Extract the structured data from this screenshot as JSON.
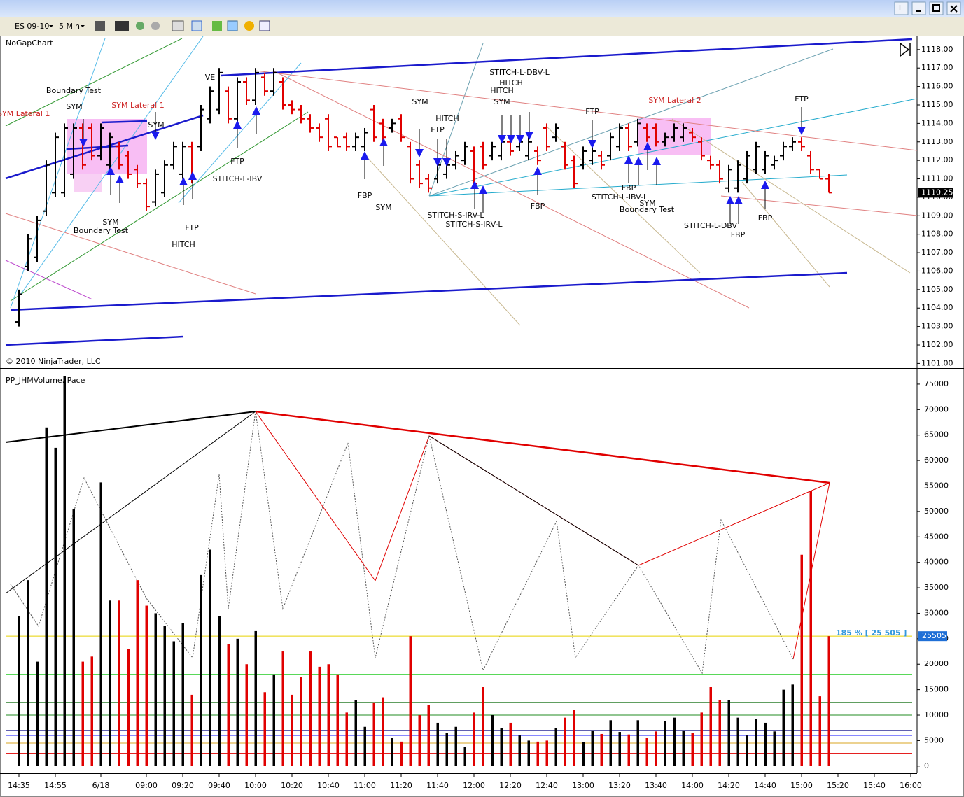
{
  "window": {
    "button": "L"
  },
  "toolbar": {
    "instrument": "ES 09-10",
    "interval": "5 Min"
  },
  "chart_data": [
    {
      "type": "ohlc",
      "title": "NoGapChart",
      "copyright": "© 2010 NinjaTrader, LLC",
      "open": [
        1103.25,
        1106.25,
        1106.75,
        1109.25,
        1110.25,
        1110.25,
        1111.25,
        1113.75,
        1113.75,
        1112.25,
        1111.75,
        1112.75,
        1112.25,
        1111.5,
        1110.75,
        1109.75,
        1110.25,
        1111.75,
        1111.25,
        1112.75,
        1112.75,
        1114.25,
        1114.75,
        1115.75,
        1114.25,
        1116.25,
        1115.25,
        1116.5,
        1115.75,
        1116.25,
        1115,
        1114.75,
        1114.25,
        1113.75,
        1114.25,
        1113.25,
        1113.25,
        1112.75,
        1112.75,
        1114.75,
        1114,
        1113.75,
        1114.25,
        1112.75,
        1111.75,
        1111,
        1111,
        1111.25,
        1111.75,
        1112,
        1112.5,
        1112.75,
        1112.25,
        1112.25,
        1113,
        1112.75,
        1112.25,
        1112.5,
        1113.75,
        1113.25,
        1112.75,
        1112,
        1111.75,
        1112,
        1112.25,
        1112.25,
        1112.75,
        1113.75,
        1113,
        1113.75,
        1113.75,
        1113,
        1113.25,
        1113.25,
        1113.5,
        1113,
        1112,
        1111.75,
        1110.5,
        1110.5,
        1111,
        1111.5,
        1111.5,
        1111.75,
        1112.25,
        1112.75,
        1113,
        1112.25,
        1111.5,
        1111
      ],
      "high": [
        1105,
        1108,
        1109,
        1112,
        1113.5,
        1114,
        1114,
        1114,
        1114,
        1114,
        1113.5,
        1113,
        1112.5,
        1111.75,
        1111,
        1111.5,
        1112,
        1113,
        1113,
        1113,
        1115,
        1116,
        1117,
        1116,
        1116.5,
        1116.5,
        1117,
        1116.75,
        1117,
        1116.5,
        1115.25,
        1115,
        1114.5,
        1114,
        1114.5,
        1113.25,
        1113.5,
        1113.5,
        1113.75,
        1115,
        1114.25,
        1114.25,
        1114.5,
        1113,
        1112,
        1111.25,
        1112,
        1112,
        1112.5,
        1113,
        1112.75,
        1113,
        1113,
        1113.25,
        1113.25,
        1113.25,
        1113.25,
        1112.75,
        1114,
        1114,
        1113,
        1112.25,
        1112.75,
        1112.75,
        1112.5,
        1113.5,
        1114,
        1114,
        1114.25,
        1114,
        1114,
        1113.5,
        1114,
        1114,
        1113.75,
        1113.25,
        1112.25,
        1112,
        1111.75,
        1112,
        1112.5,
        1113,
        1112.5,
        1112.25,
        1113,
        1113.25,
        1113.25,
        1112.5,
        1111.5,
        1111.25
      ],
      "low": [
        1103,
        1106,
        1106.5,
        1109,
        1110,
        1110,
        1111,
        1111.5,
        1112,
        1112,
        1111.5,
        1111.5,
        1111,
        1110.5,
        1109.25,
        1109.5,
        1110,
        1111.5,
        1111,
        1110.75,
        1112.5,
        1114,
        1114.5,
        1114,
        1114,
        1115,
        1115,
        1115.5,
        1115.5,
        1114.75,
        1114.5,
        1114,
        1113.5,
        1113,
        1112.5,
        1112.75,
        1112.5,
        1112.5,
        1112.5,
        1113,
        1113,
        1113.5,
        1113,
        1110.75,
        1110.5,
        1110.25,
        1110.75,
        1111,
        1111.5,
        1111.75,
        1110.5,
        1111.5,
        1112,
        1112,
        1112.25,
        1112.5,
        1112,
        1111.75,
        1112.5,
        1113,
        1111.5,
        1110.5,
        1111.5,
        1111.75,
        1111.5,
        1112,
        1112.5,
        1112.5,
        1112.75,
        1113,
        1112.75,
        1112.75,
        1113,
        1113,
        1113,
        1112,
        1111.5,
        1110.75,
        1110.25,
        1110.25,
        1110.75,
        1111.25,
        1111.25,
        1111.5,
        1112,
        1112.5,
        1112.5,
        1111.25,
        1111,
        1110.25
      ],
      "close": [
        1104.75,
        1107.75,
        1108.75,
        1111.75,
        1113.25,
        1113.75,
        1113.75,
        1111.75,
        1112.25,
        1113.75,
        1113.25,
        1111.75,
        1111.25,
        1110.75,
        1109.5,
        1111.25,
        1111.75,
        1112.75,
        1112.75,
        1111,
        1114.75,
        1115.75,
        1116.75,
        1114.25,
        1116.25,
        1115.25,
        1116.75,
        1115.75,
        1116.75,
        1115,
        1114.75,
        1114.25,
        1113.75,
        1113.25,
        1112.75,
        1112.75,
        1112.75,
        1113.25,
        1113.5,
        1113.25,
        1113.25,
        1114,
        1113.25,
        1111,
        1110.75,
        1110.5,
        1111.75,
        1111.75,
        1112.25,
        1112.75,
        1110.75,
        1111.75,
        1112.75,
        1113,
        1112.5,
        1113,
        1113,
        1112,
        1112.75,
        1113.75,
        1111.75,
        1110.75,
        1112.5,
        1112.5,
        1111.75,
        1113.25,
        1113.75,
        1112.75,
        1114,
        1113.25,
        1113,
        1113.25,
        1113.75,
        1113.75,
        1113.25,
        1112.25,
        1111.75,
        1111,
        1111.5,
        1111.75,
        1112.25,
        1112.75,
        1112.25,
        1112,
        1112.75,
        1113,
        1112.75,
        1111.5,
        1111,
        1110.25
      ],
      "up_color": "#000000",
      "down_color": "#e00000",
      "ylim": [
        1100.75,
        1118.6
      ],
      "yticks": [
        {
          "value": 1101,
          "label": "1101.00"
        },
        {
          "value": 1102,
          "label": "1102.00"
        },
        {
          "value": 1103,
          "label": "1103.00"
        },
        {
          "value": 1104,
          "label": "1104.00"
        },
        {
          "value": 1105,
          "label": "1105.00"
        },
        {
          "value": 1106,
          "label": "1106.00"
        },
        {
          "value": 1107,
          "label": "1107.00"
        },
        {
          "value": 1108,
          "label": "1108.00"
        },
        {
          "value": 1109,
          "label": "1109.00"
        },
        {
          "value": 1110,
          "label": "1110.00"
        },
        {
          "value": 1111,
          "label": "1111.00"
        },
        {
          "value": 1112,
          "label": "1112.00"
        },
        {
          "value": 1113,
          "label": "1113.00"
        },
        {
          "value": 1114,
          "label": "1114.00"
        },
        {
          "value": 1115,
          "label": "1115.00"
        },
        {
          "value": 1116,
          "label": "1116.00"
        },
        {
          "value": 1117,
          "label": "1117.00"
        },
        {
          "value": 1118,
          "label": "1118.00"
        }
      ],
      "annotations": [
        "SYM Lateral 1",
        "SYM Lateral 1",
        "SYM Lateral 2",
        "Boundary Test",
        "SYM",
        "SYM",
        "SYM",
        "Boundary Test",
        "FTP",
        "HITCH",
        "VE",
        "FTP",
        "STITCH-L-IBV",
        "FBP",
        "SYM",
        "SYM",
        "HITCH",
        "FTP",
        "STITCH-S-IRV-L",
        "STITCH-S-IRV-L",
        "STITCH-L-DBV-L",
        "HITCH",
        "HITCH",
        "SYM",
        "FBP",
        "FTP",
        "FBP",
        "STITCH-L-IBV-L",
        "SYM",
        "Boundary Test",
        "FTP",
        "STITCH-L-DBV",
        "FBP",
        "FBP"
      ]
    },
    {
      "type": "bar",
      "title": "PP_JHMVolume, Pace",
      "categories": [
        "14:35",
        null,
        null,
        null,
        "14:55",
        null,
        null,
        null,
        null,
        "6/18",
        null,
        null,
        null,
        null,
        "09:00",
        null,
        null,
        null,
        "09:20",
        null,
        null,
        null,
        "09:40",
        null,
        null,
        null,
        "10:00",
        null,
        null,
        null,
        "10:20",
        null,
        null,
        null,
        "10:40",
        null,
        null,
        null,
        "11:00",
        null,
        null,
        null,
        "11:20",
        null,
        null,
        null,
        "11:40",
        null,
        null,
        null,
        "12:00",
        null,
        null,
        null,
        "12:20",
        null,
        null,
        null,
        "12:40",
        null,
        null,
        null,
        "13:00",
        null,
        null,
        null,
        "13:20",
        null,
        null,
        null,
        "13:40",
        null,
        null,
        null,
        "14:00",
        null,
        null,
        null,
        "14:20",
        null,
        null,
        null,
        "14:40",
        null,
        null,
        null,
        "15:00",
        null,
        null,
        null,
        "15:20",
        null,
        null,
        null,
        "15:40",
        null,
        null,
        null,
        "16:00"
      ],
      "values": [
        29500,
        36500,
        20500,
        66500,
        62500,
        76500,
        50500,
        20500,
        21500,
        55700,
        32500,
        32500,
        23000,
        36500,
        31500,
        30000,
        27500,
        24500,
        28000,
        14000,
        37500,
        42500,
        29500,
        24000,
        25000,
        20000,
        26500,
        14500,
        18000,
        22500,
        14000,
        17500,
        22500,
        19500,
        20000,
        18000,
        10500,
        13000,
        7700,
        12500,
        13500,
        5500,
        4800,
        25500,
        10000,
        12000,
        8500,
        6500,
        7700,
        3700,
        10500,
        15500,
        10000,
        7500,
        8500,
        6000,
        5000,
        4800,
        5000,
        7500,
        9500,
        11000,
        4700,
        7000,
        6300,
        9000,
        6700,
        6200,
        9000,
        5500,
        6800,
        8800,
        9500,
        7000,
        6500,
        10500,
        15500,
        13000,
        13000,
        9500,
        6000,
        9300,
        8500,
        6800,
        15000,
        16000,
        41500,
        54000,
        13700,
        25505,
        null,
        null,
        null,
        null,
        null,
        null,
        null,
        null,
        null
      ],
      "ylim": [
        -1400,
        77600
      ],
      "yticks": [
        0,
        5000,
        10000,
        15000,
        20000,
        25000,
        30000,
        35000,
        40000,
        45000,
        50000,
        55000,
        60000,
        65000,
        70000,
        75000
      ],
      "levels": [
        18000,
        12500,
        10000,
        7000,
        6000,
        4500,
        2500
      ],
      "level_colors": [
        "#22cc22",
        "#006400",
        "#228b22",
        "#000080",
        "#4040ff",
        "#daa520",
        "#e00000"
      ],
      "annotation": "185 % [ 25 505 ]"
    }
  ]
}
